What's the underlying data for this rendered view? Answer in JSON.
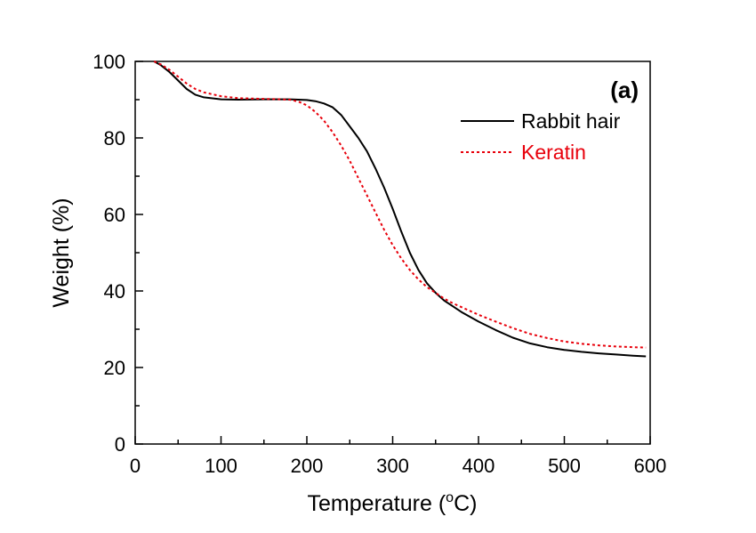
{
  "chart_data": {
    "type": "line",
    "panel_label": "(a)",
    "xlabel_text": "Temperature (",
    "xlabel_sup": "o",
    "xlabel_unit": "C)",
    "ylabel": "Weight (%)",
    "xlim": [
      0,
      600
    ],
    "ylim": [
      0,
      100
    ],
    "xticks": [
      0,
      100,
      200,
      300,
      400,
      500,
      600
    ],
    "yticks": [
      0,
      20,
      40,
      60,
      80,
      100
    ],
    "grid": false,
    "legend_position": "top-right",
    "series": [
      {
        "name": "Rabbit hair",
        "color": "#000000",
        "style": "solid",
        "x": [
          22,
          30,
          40,
          50,
          60,
          70,
          80,
          100,
          120,
          150,
          180,
          200,
          210,
          220,
          230,
          240,
          250,
          260,
          270,
          280,
          290,
          300,
          310,
          320,
          330,
          340,
          350,
          360,
          370,
          380,
          400,
          420,
          440,
          460,
          480,
          500,
          520,
          540,
          560,
          580,
          595
        ],
        "y": [
          100,
          99,
          97.2,
          95,
          92.8,
          91.3,
          90.6,
          90.1,
          90,
          90.1,
          90.1,
          89.9,
          89.6,
          89,
          88,
          86,
          83,
          80,
          76.5,
          72,
          67,
          61.5,
          55.5,
          50,
          45.5,
          42,
          39.5,
          37.5,
          36,
          34.5,
          32,
          29.8,
          27.8,
          26.3,
          25.3,
          24.6,
          24.1,
          23.7,
          23.4,
          23.1,
          22.9
        ]
      },
      {
        "name": "Keratin",
        "color": "#e8000b",
        "style": "dashed",
        "x": [
          22,
          30,
          40,
          50,
          60,
          70,
          80,
          100,
          120,
          150,
          170,
          180,
          190,
          200,
          210,
          220,
          230,
          240,
          250,
          260,
          270,
          280,
          290,
          300,
          310,
          320,
          330,
          340,
          350,
          360,
          370,
          380,
          400,
          420,
          440,
          460,
          480,
          500,
          520,
          540,
          560,
          580,
          595
        ],
        "y": [
          100,
          99.2,
          97.8,
          96,
          94.2,
          92.8,
          91.9,
          90.9,
          90.4,
          90.2,
          90.1,
          90,
          89.5,
          88.5,
          86.8,
          84.5,
          81.5,
          78,
          74,
          69.5,
          65,
          60.5,
          56,
          52,
          48.5,
          45.5,
          43,
          41,
          39.5,
          38,
          36.8,
          35.8,
          33.8,
          32,
          30.3,
          28.8,
          27.7,
          26.8,
          26.2,
          25.8,
          25.5,
          25.3,
          25.2
        ]
      }
    ]
  }
}
